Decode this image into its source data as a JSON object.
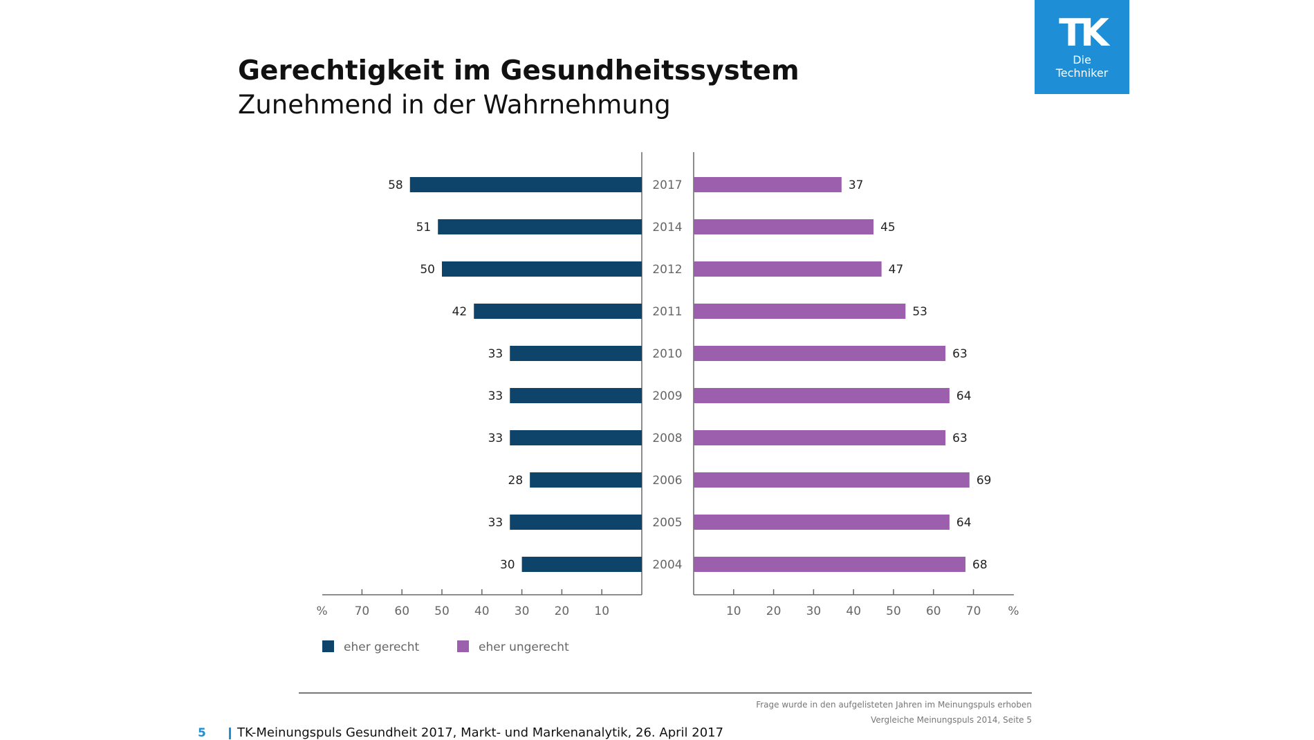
{
  "logo": {
    "mark": "TK",
    "line1": "Die",
    "line2": "Techniker"
  },
  "title": "Gerechtigkeit im Gesundheitssystem",
  "subtitle": "Zunehmend in der Wahrnehmung",
  "chart_data": {
    "type": "bar",
    "orientation": "horizontal-diverging",
    "categories": [
      "2017",
      "2014",
      "2012",
      "2011",
      "2010",
      "2009",
      "2008",
      "2006",
      "2005",
      "2004"
    ],
    "series": [
      {
        "name": "eher gerecht",
        "values": [
          58,
          51,
          50,
          42,
          33,
          33,
          33,
          28,
          33,
          30
        ],
        "color": "#0e4469",
        "side": "left"
      },
      {
        "name": "eher ungerecht",
        "values": [
          37,
          45,
          47,
          53,
          63,
          64,
          63,
          69,
          64,
          68
        ],
        "color": "#9b5fae",
        "side": "right"
      }
    ],
    "left_ticks": [
      "%",
      "70",
      "60",
      "50",
      "40",
      "30",
      "20",
      "10"
    ],
    "right_ticks": [
      "10",
      "20",
      "30",
      "40",
      "50",
      "60",
      "70",
      "%"
    ],
    "xlim": [
      0,
      80
    ],
    "legend_position": "bottom-left",
    "grid": false
  },
  "footer": {
    "note_line1": "Frage wurde in den aufgelisteten Jahren im Meinungspuls erhoben",
    "note_line2": "Vergleiche Meinungspuls 2014, Seite 5",
    "page_number": "5",
    "source": "TK-Meinungspuls Gesundheit 2017, Markt- und Markenanalytik, 26. April 2017"
  }
}
